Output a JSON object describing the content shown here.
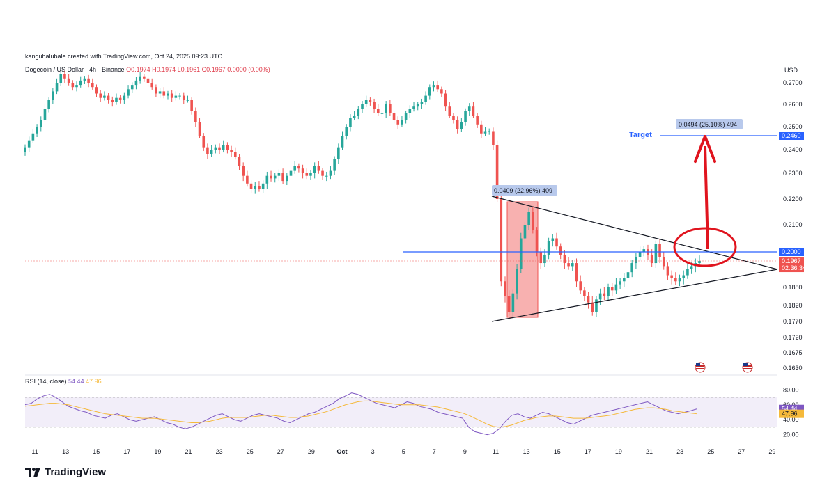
{
  "header": {
    "attribution": "kanguhalubale created with TradingView.com, Oct 24, 2025 09:23 UTC",
    "symbol": "Dogecoin / US Dollar · 4h · Binance",
    "ohlc": "O0.1974 H0.1974 L0.1961 C0.1967 0.0000 (0.00%)",
    "currency": "USD"
  },
  "rsi_legend": {
    "label": "RSI (14, close)",
    "value1": "54.44",
    "value2": "47.96"
  },
  "brand": {
    "name": "TradingView"
  },
  "annotations": {
    "measure_left": "0.0409 (22.96%) 409",
    "measure_right": "0.0494 (25.10%) 494",
    "target_label": "Target"
  },
  "colors": {
    "up": "#26a69a",
    "down": "#ef5350",
    "level_line": "#2962ff",
    "annotation_red": "#e0141e",
    "rsi_line": "#7e57c2",
    "rsi_ma": "#f5b93a"
  },
  "chart_data": [
    {
      "type": "candlestick",
      "title": "Dogecoin / US Dollar · 4h · Binance",
      "ylim": [
        0.16,
        0.276
      ],
      "y_ticks": [
        "0.2700",
        "0.2600",
        "0.2500",
        "0.2400",
        "0.2300",
        "0.2200",
        "0.2100",
        "0.2000",
        "0.1880",
        "0.1820",
        "0.1770",
        "0.1720",
        "0.1675",
        "0.1630"
      ],
      "x_ticks": [
        "11",
        "13",
        "15",
        "17",
        "19",
        "21",
        "23",
        "25",
        "27",
        "29",
        "Oct",
        "3",
        "5",
        "7",
        "9",
        "11",
        "13",
        "15",
        "17",
        "19",
        "21",
        "23",
        "25",
        "27",
        "29"
      ],
      "price_labels": [
        {
          "text": "0.2460",
          "value": 0.246,
          "color": "#2962ff"
        },
        {
          "text": "0.2000",
          "value": 0.2,
          "color": "#2962ff"
        },
        {
          "text": "0.1967",
          "value": 0.1967,
          "color": "#ef5350"
        },
        {
          "text": "02:36:34",
          "value": 0.1944,
          "color": "#ef5350"
        }
      ],
      "levels": [
        {
          "name": "target",
          "value": 0.246
        },
        {
          "name": "resistance",
          "value": 0.2
        },
        {
          "name": "current",
          "value": 0.1967
        }
      ],
      "approx_closes": [
        0.241,
        0.244,
        0.247,
        0.25,
        0.253,
        0.258,
        0.262,
        0.266,
        0.27,
        0.274,
        0.272,
        0.27,
        0.268,
        0.269,
        0.271,
        0.272,
        0.27,
        0.268,
        0.265,
        0.263,
        0.264,
        0.262,
        0.261,
        0.263,
        0.262,
        0.264,
        0.267,
        0.269,
        0.271,
        0.273,
        0.272,
        0.27,
        0.268,
        0.265,
        0.266,
        0.264,
        0.265,
        0.263,
        0.264,
        0.264,
        0.262,
        0.262,
        0.257,
        0.252,
        0.246,
        0.241,
        0.238,
        0.24,
        0.241,
        0.24,
        0.242,
        0.24,
        0.239,
        0.237,
        0.233,
        0.229,
        0.226,
        0.224,
        0.225,
        0.224,
        0.226,
        0.229,
        0.228,
        0.229,
        0.23,
        0.227,
        0.229,
        0.231,
        0.233,
        0.232,
        0.23,
        0.229,
        0.23,
        0.233,
        0.231,
        0.229,
        0.229,
        0.231,
        0.236,
        0.241,
        0.246,
        0.25,
        0.254,
        0.255,
        0.258,
        0.26,
        0.262,
        0.261,
        0.258,
        0.256,
        0.256,
        0.26,
        0.256,
        0.253,
        0.251,
        0.253,
        0.256,
        0.258,
        0.259,
        0.26,
        0.261,
        0.264,
        0.268,
        0.269,
        0.267,
        0.265,
        0.259,
        0.255,
        0.253,
        0.249,
        0.252,
        0.257,
        0.259,
        0.255,
        0.251,
        0.247,
        0.248,
        0.248,
        0.242,
        0.22,
        0.19,
        0.185,
        0.18,
        0.186,
        0.194,
        0.205,
        0.21,
        0.215,
        0.208,
        0.2,
        0.196,
        0.199,
        0.204,
        0.205,
        0.202,
        0.199,
        0.196,
        0.195,
        0.196,
        0.19,
        0.187,
        0.185,
        0.183,
        0.18,
        0.184,
        0.186,
        0.185,
        0.188,
        0.187,
        0.189,
        0.19,
        0.191,
        0.193,
        0.196,
        0.198,
        0.2,
        0.201,
        0.199,
        0.196,
        0.203,
        0.198,
        0.195,
        0.192,
        0.191,
        0.19,
        0.191,
        0.192,
        0.194,
        0.195,
        0.196,
        0.1967
      ]
    },
    {
      "type": "line",
      "title": "RSI (14, close)",
      "ylim": [
        15,
        85
      ],
      "y_ticks": [
        "80.00",
        "60.00",
        "40.00",
        "20.00"
      ],
      "price_labels": [
        {
          "text": "54.44",
          "value": 54.44,
          "color": "#7e57c2"
        },
        {
          "text": "47.96",
          "value": 47.96,
          "color": "#f5b93a"
        }
      ],
      "bands": [
        30,
        70
      ],
      "series": [
        {
          "values": [
            60,
            62,
            68,
            72,
            74,
            70,
            64,
            58,
            55,
            52,
            50,
            46,
            44,
            42,
            46,
            48,
            44,
            40,
            38,
            40,
            42,
            44,
            40,
            36,
            34,
            30,
            28,
            30,
            34,
            38,
            42,
            46,
            48,
            44,
            40,
            38,
            42,
            46,
            48,
            46,
            44,
            42,
            38,
            36,
            40,
            44,
            48,
            50,
            54,
            58,
            62,
            68,
            72,
            76,
            74,
            70,
            66,
            62,
            60,
            58,
            56,
            60,
            64,
            62,
            58,
            56,
            54,
            50,
            48,
            46,
            44,
            42,
            30,
            24,
            22,
            20,
            22,
            28,
            38,
            46,
            48,
            44,
            42,
            46,
            50,
            48,
            44,
            40,
            36,
            34,
            38,
            42,
            46,
            48,
            50,
            52,
            54,
            56,
            58,
            60,
            62,
            64,
            60,
            56,
            52,
            50,
            48,
            50,
            52,
            54.44
          ]
        },
        {
          "values": [
            58,
            59,
            60,
            61,
            62,
            62,
            61,
            60,
            58,
            56,
            54,
            52,
            50,
            48,
            47,
            46,
            45,
            44,
            43,
            42,
            42,
            42,
            41,
            40,
            39,
            38,
            37,
            36,
            36,
            37,
            38,
            40,
            42,
            43,
            43,
            43,
            43,
            44,
            45,
            46,
            46,
            45,
            44,
            43,
            43,
            44,
            45,
            47,
            49,
            51,
            54,
            57,
            60,
            62,
            64,
            65,
            65,
            64,
            63,
            62,
            61,
            60,
            60,
            60,
            60,
            59,
            58,
            57,
            55,
            53,
            51,
            49,
            46,
            42,
            38,
            34,
            31,
            30,
            31,
            33,
            36,
            39,
            41,
            43,
            44,
            45,
            45,
            44,
            43,
            42,
            42,
            42,
            43,
            44,
            45,
            46,
            48,
            50,
            52,
            54,
            55,
            56,
            56,
            55,
            54,
            52,
            51,
            50,
            49,
            47.96
          ]
        }
      ]
    }
  ]
}
